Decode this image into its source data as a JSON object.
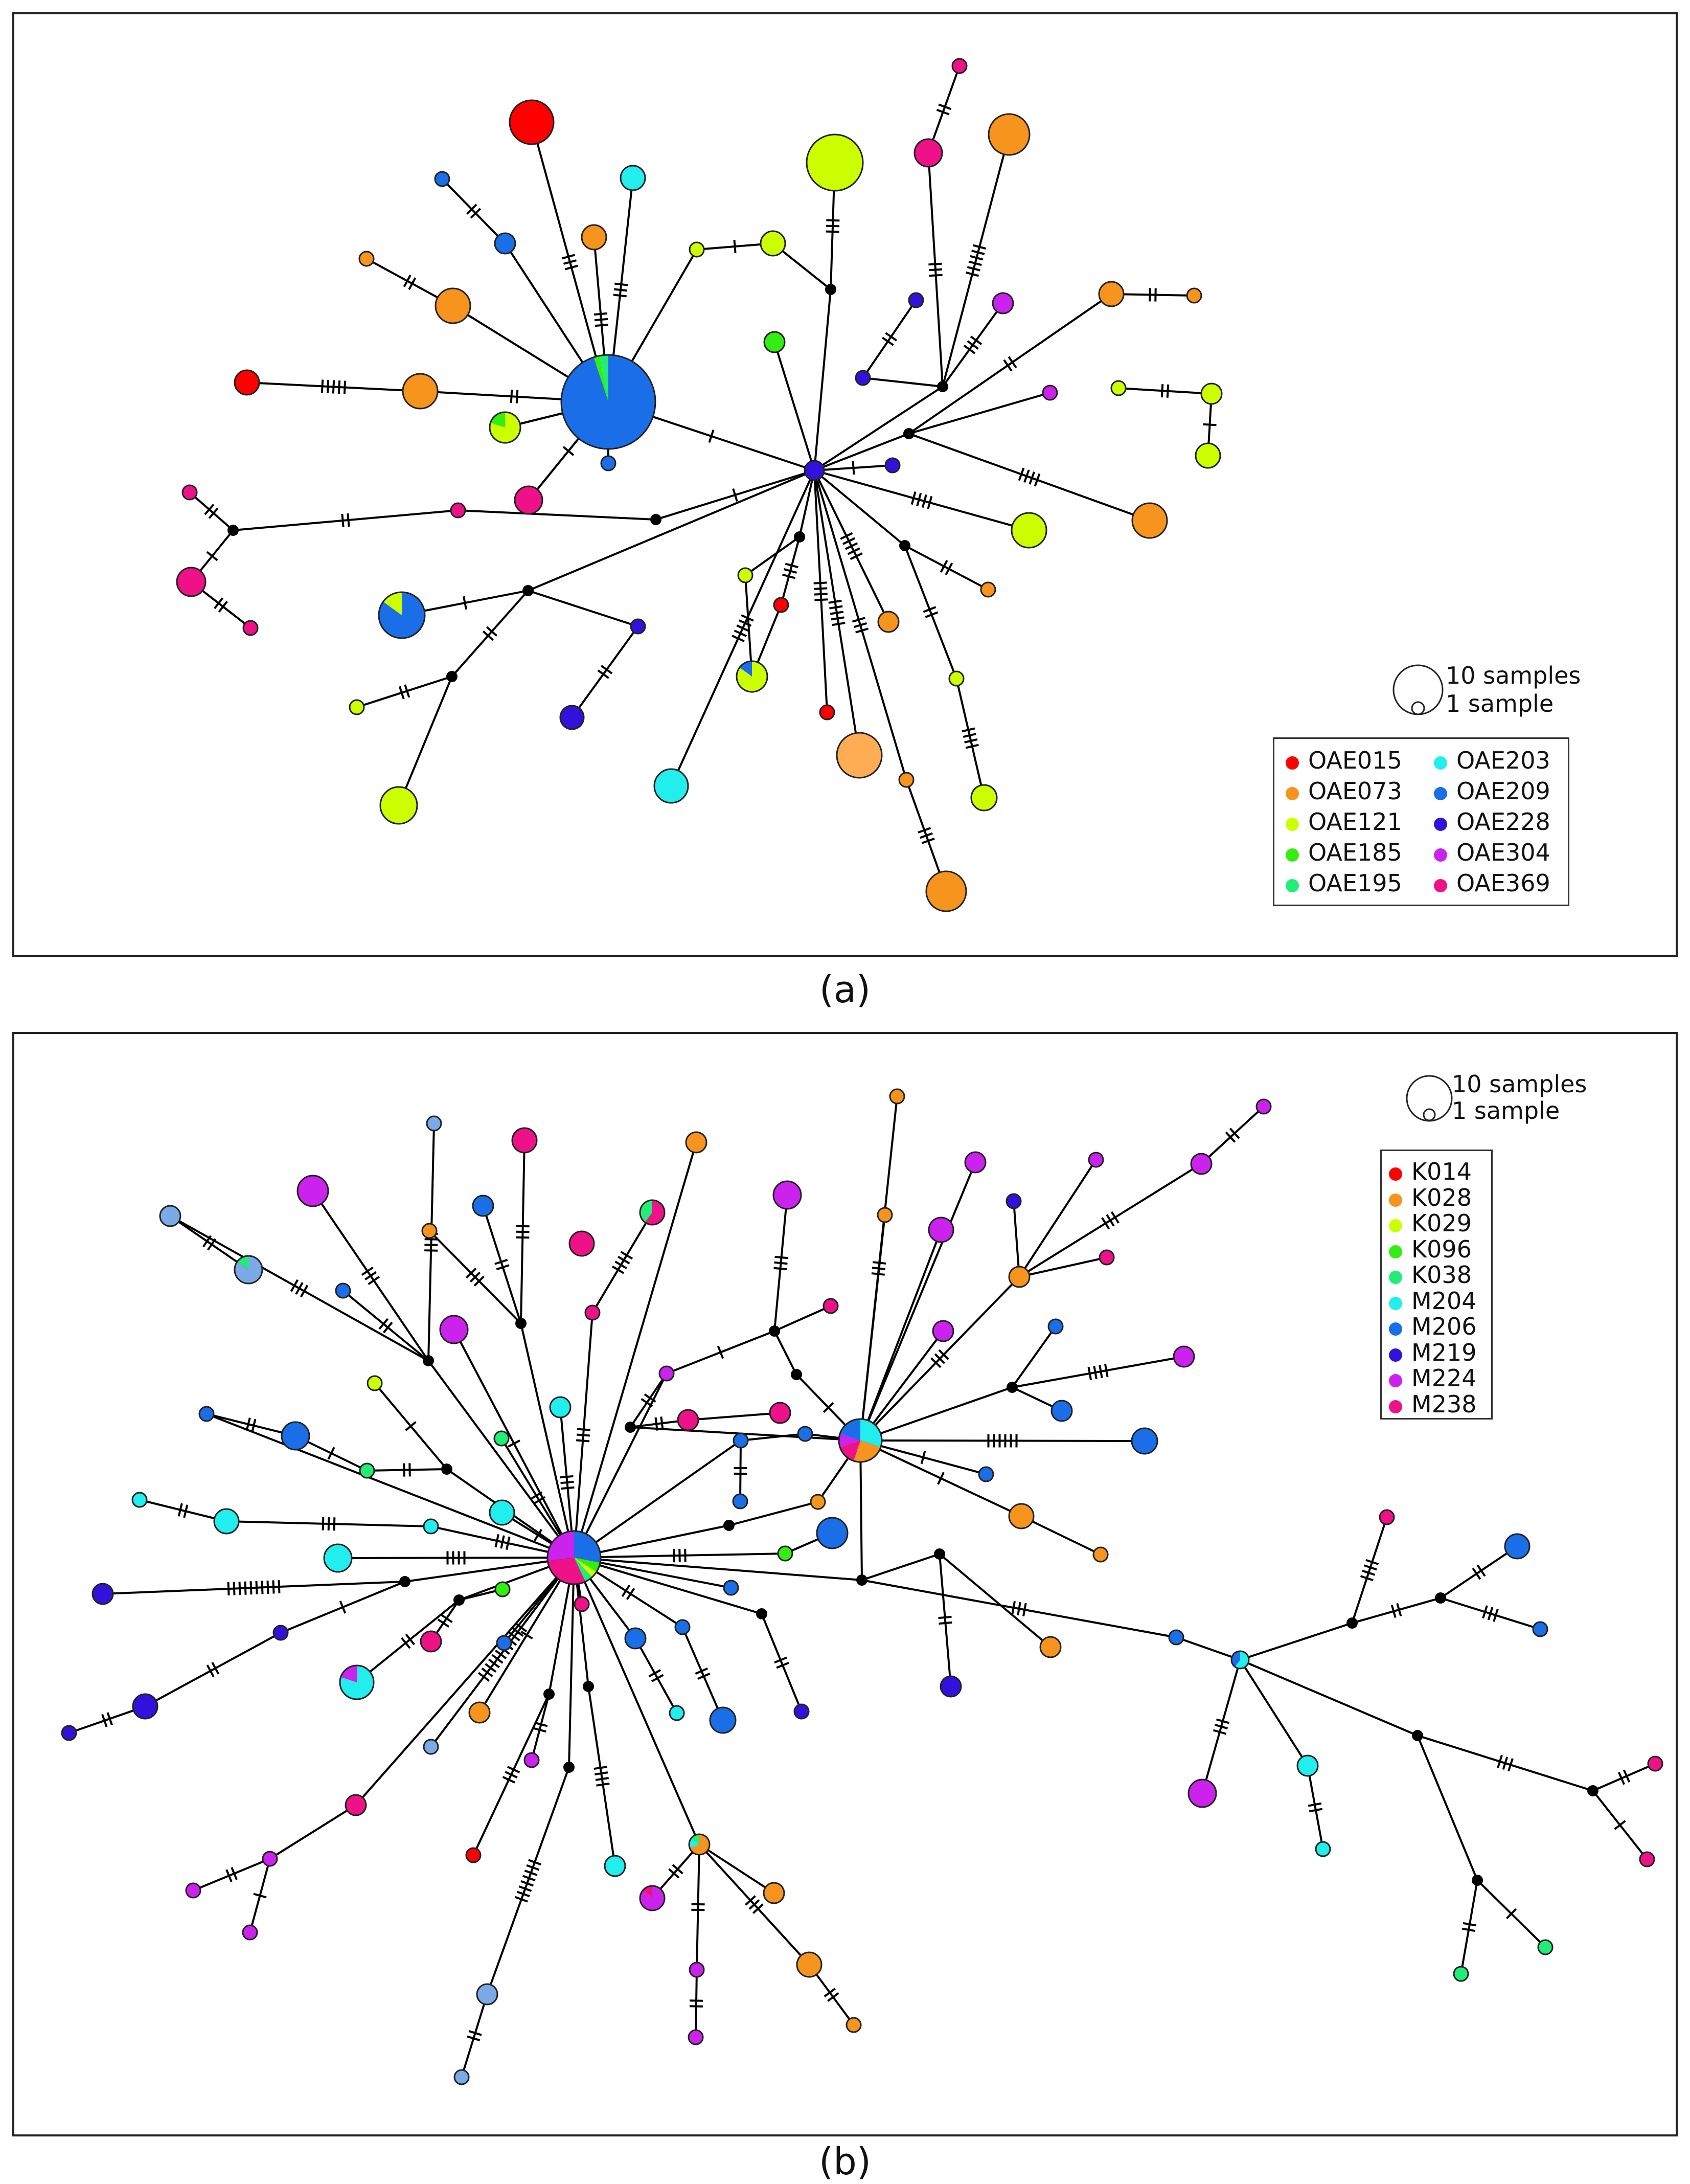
{
  "panel_a": {
    "caption": "(a)",
    "size_key": {
      "large": "10 samples",
      "small": "1 sample"
    },
    "legend": [
      {
        "label": "OAE015",
        "color": "#ff0000"
      },
      {
        "label": "OAE073",
        "color": "#f7941d"
      },
      {
        "label": "OAE121",
        "color": "#ccff00"
      },
      {
        "label": "OAE185",
        "color": "#33ee11"
      },
      {
        "label": "OAE195",
        "color": "#22ee77"
      },
      {
        "label": "OAE203",
        "color": "#22eeee"
      },
      {
        "label": "OAE209",
        "color": "#1a6fe8"
      },
      {
        "label": "OAE228",
        "color": "#3311dd"
      },
      {
        "label": "OAE304",
        "color": "#cc22ee"
      },
      {
        "label": "OAE369",
        "color": "#ee1188"
      }
    ]
  },
  "panel_b": {
    "caption": "(b)",
    "size_key": {
      "large": "10 samples",
      "small": "1 sample"
    },
    "legend": [
      {
        "label": "K014",
        "color": "#ff0000"
      },
      {
        "label": "K028",
        "color": "#f7941d"
      },
      {
        "label": "K029",
        "color": "#ccff00"
      },
      {
        "label": "K096",
        "color": "#33ee11"
      },
      {
        "label": "K038",
        "color": "#22ee77"
      },
      {
        "label": "M204",
        "color": "#22eeee"
      },
      {
        "label": "M206",
        "color": "#1a6fe8"
      },
      {
        "label": "M219",
        "color": "#3311dd"
      },
      {
        "label": "M224",
        "color": "#cc22ee"
      },
      {
        "label": "M238",
        "color": "#ee1188"
      }
    ]
  },
  "colors": {
    "edge": "#000000",
    "median_vector": "#000000",
    "node_outline": "#222222",
    "light_blue": "#7aaae8",
    "light_orange": "#ffad55"
  }
}
